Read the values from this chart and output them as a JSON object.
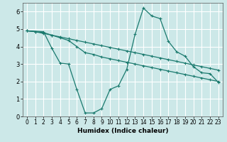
{
  "background_color": "#cce8e8",
  "grid_color": "#e8e8e8",
  "line_color": "#1a7a6e",
  "xlabel": "Humidex (Indice chaleur)",
  "xlim": [
    -0.5,
    23.5
  ],
  "ylim": [
    0,
    6.5
  ],
  "yticks": [
    0,
    1,
    2,
    3,
    4,
    5,
    6
  ],
  "xticks": [
    0,
    1,
    2,
    3,
    4,
    5,
    6,
    7,
    8,
    9,
    10,
    11,
    12,
    13,
    14,
    15,
    16,
    17,
    18,
    19,
    20,
    21,
    22,
    23
  ],
  "series": [
    {
      "x": [
        0,
        1,
        2,
        3,
        4,
        5,
        6,
        7,
        8,
        9,
        10,
        11,
        12,
        13,
        14,
        15,
        16,
        17,
        18,
        19,
        20,
        21,
        22,
        23
      ],
      "y": [
        4.9,
        4.85,
        4.75,
        4.65,
        4.55,
        4.45,
        4.35,
        4.25,
        4.15,
        4.05,
        3.95,
        3.85,
        3.75,
        3.65,
        3.55,
        3.45,
        3.35,
        3.25,
        3.15,
        3.05,
        2.95,
        2.85,
        2.75,
        2.65
      ]
    },
    {
      "x": [
        0,
        1,
        2,
        3,
        4,
        5,
        6,
        7,
        8,
        9,
        10,
        11,
        12,
        13,
        14,
        15,
        16,
        17,
        18,
        19,
        20,
        21,
        22,
        23
      ],
      "y": [
        4.9,
        4.85,
        4.8,
        4.65,
        4.5,
        4.35,
        4.0,
        3.65,
        3.55,
        3.4,
        3.3,
        3.2,
        3.1,
        3.0,
        2.9,
        2.8,
        2.7,
        2.6,
        2.5,
        2.4,
        2.3,
        2.2,
        2.1,
        2.0
      ]
    },
    {
      "x": [
        0,
        2,
        3,
        4,
        5,
        6,
        7,
        8,
        9,
        10,
        11,
        12,
        13,
        14,
        15,
        16,
        17,
        18,
        19,
        20,
        21,
        22,
        23
      ],
      "y": [
        4.9,
        4.85,
        3.9,
        3.05,
        3.0,
        1.55,
        0.2,
        0.2,
        0.45,
        1.55,
        1.75,
        2.7,
        4.7,
        6.2,
        5.75,
        5.6,
        4.3,
        3.7,
        3.45,
        2.85,
        2.5,
        2.45,
        1.95
      ]
    }
  ]
}
